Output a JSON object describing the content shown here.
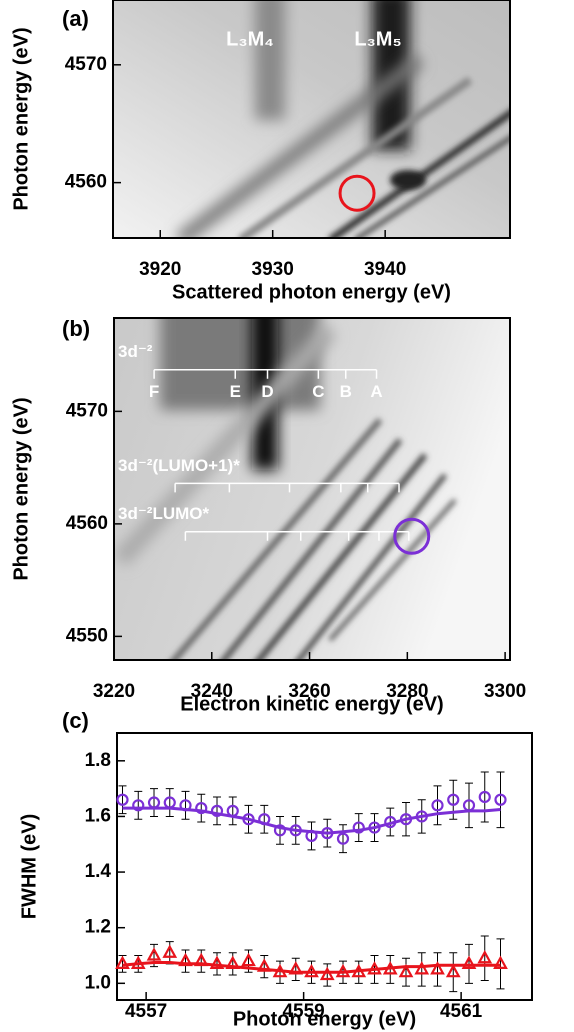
{
  "chart_data": [
    {
      "type": "map",
      "panel": "(a)",
      "xlabel": "Scattered photon energy (eV)",
      "ylabel": "Photon energy (eV)",
      "xlim": [
        3915.8,
        3951.1
      ],
      "ylim": [
        4555.3,
        4575.5
      ],
      "xticks": [
        3920,
        3930,
        3940
      ],
      "yticks": [
        4560,
        4570
      ],
      "annotations": [
        "L₃M₄",
        "L₃M₅"
      ],
      "circle": {
        "x": 3937.5,
        "y": 4559.1,
        "color": "#e8141c"
      }
    },
    {
      "type": "map",
      "panel": "(b)",
      "xlabel": "Electron kinetic energy (eV)",
      "ylabel": "Photon energy (eV)",
      "xlim": [
        3220,
        3301
      ],
      "ylim": [
        4547.9,
        4578.3
      ],
      "xticks": [
        3220,
        3240,
        3260,
        3280,
        3300
      ],
      "yticks": [
        4550,
        4560,
        4570
      ],
      "levels": [
        {
          "label": "3d⁻²",
          "y": 4573.7,
          "x": [
            3228.2,
            3244.8,
            3251.4,
            3261.8,
            3267.4,
            3273.7
          ],
          "tick_labels": [
            "F",
            "E",
            "D",
            "C",
            "B",
            "A"
          ]
        },
        {
          "label": "3d⁻²(LUMO+1)*",
          "y": 4563.6,
          "x": [
            3232.5,
            3243.6,
            3255.9,
            3266.4,
            3271.9,
            3278.3
          ]
        },
        {
          "label": "3d⁻²LUMO*",
          "y": 4559.3,
          "x": [
            3234.6,
            3251.4,
            3258.2,
            3268.0,
            3274.2,
            3280.3
          ]
        }
      ],
      "circle": {
        "x": 3280.9,
        "y": 4558.9,
        "color": "#7b2fd6"
      }
    },
    {
      "type": "errorbar",
      "panel": "(c)",
      "xlabel": "Photon energy (eV)",
      "ylabel": "FWHM (eV)",
      "xlim": [
        4556.63,
        4561.9
      ],
      "ylim": [
        0.94,
        1.9
      ],
      "xticks": [
        4557,
        4559,
        4561
      ],
      "yticks": [
        {
          "value": 1.0,
          "label": "1.0"
        },
        1.2,
        1.4,
        1.6,
        1.8
      ],
      "x": [
        4556.7,
        4556.9,
        4557.1,
        4557.3,
        4557.5,
        4557.7,
        4557.9,
        4558.1,
        4558.3,
        4558.5,
        4558.7,
        4558.9,
        4559.1,
        4559.3,
        4559.5,
        4559.7,
        4559.9,
        4560.1,
        4560.3,
        4560.5,
        4560.7,
        4560.9,
        4561.1,
        4561.3,
        4561.5
      ],
      "series": [
        {
          "color": "#7b2fd6",
          "marker": "circle",
          "values": [
            1.66,
            1.64,
            1.65,
            1.65,
            1.64,
            1.63,
            1.62,
            1.62,
            1.59,
            1.59,
            1.55,
            1.55,
            1.53,
            1.54,
            1.52,
            1.56,
            1.56,
            1.58,
            1.59,
            1.6,
            1.64,
            1.66,
            1.64,
            1.67,
            1.66
          ],
          "errors": [
            0.05,
            0.05,
            0.05,
            0.05,
            0.05,
            0.05,
            0.05,
            0.05,
            0.05,
            0.05,
            0.05,
            0.05,
            0.05,
            0.05,
            0.05,
            0.05,
            0.05,
            0.05,
            0.06,
            0.06,
            0.07,
            0.07,
            0.08,
            0.09,
            0.1
          ]
        },
        {
          "color": "#e8141c",
          "marker": "triangle",
          "values": [
            1.07,
            1.07,
            1.1,
            1.11,
            1.08,
            1.08,
            1.07,
            1.07,
            1.08,
            1.06,
            1.04,
            1.05,
            1.04,
            1.03,
            1.04,
            1.04,
            1.05,
            1.05,
            1.04,
            1.05,
            1.05,
            1.04,
            1.07,
            1.09,
            1.07
          ],
          "errors": [
            0.03,
            0.03,
            0.04,
            0.04,
            0.04,
            0.04,
            0.04,
            0.04,
            0.04,
            0.04,
            0.04,
            0.04,
            0.04,
            0.04,
            0.04,
            0.04,
            0.05,
            0.05,
            0.05,
            0.06,
            0.06,
            0.07,
            0.07,
            0.08,
            0.09
          ]
        },
        {
          "color": "#7b2fd6",
          "style": "line",
          "values": [
            1.63,
            1.63,
            1.63,
            1.63,
            1.625,
            1.62,
            1.61,
            1.6,
            1.59,
            1.575,
            1.56,
            1.55,
            1.545,
            1.54,
            1.545,
            1.55,
            1.56,
            1.575,
            1.59,
            1.6,
            1.61,
            1.615,
            1.62,
            1.62,
            1.625
          ]
        },
        {
          "color": "#e8141c",
          "style": "line",
          "values": [
            1.065,
            1.07,
            1.075,
            1.075,
            1.07,
            1.07,
            1.065,
            1.06,
            1.055,
            1.05,
            1.045,
            1.04,
            1.04,
            1.04,
            1.04,
            1.045,
            1.05,
            1.055,
            1.06,
            1.06,
            1.065,
            1.065,
            1.065,
            1.065,
            1.065
          ]
        }
      ]
    }
  ]
}
